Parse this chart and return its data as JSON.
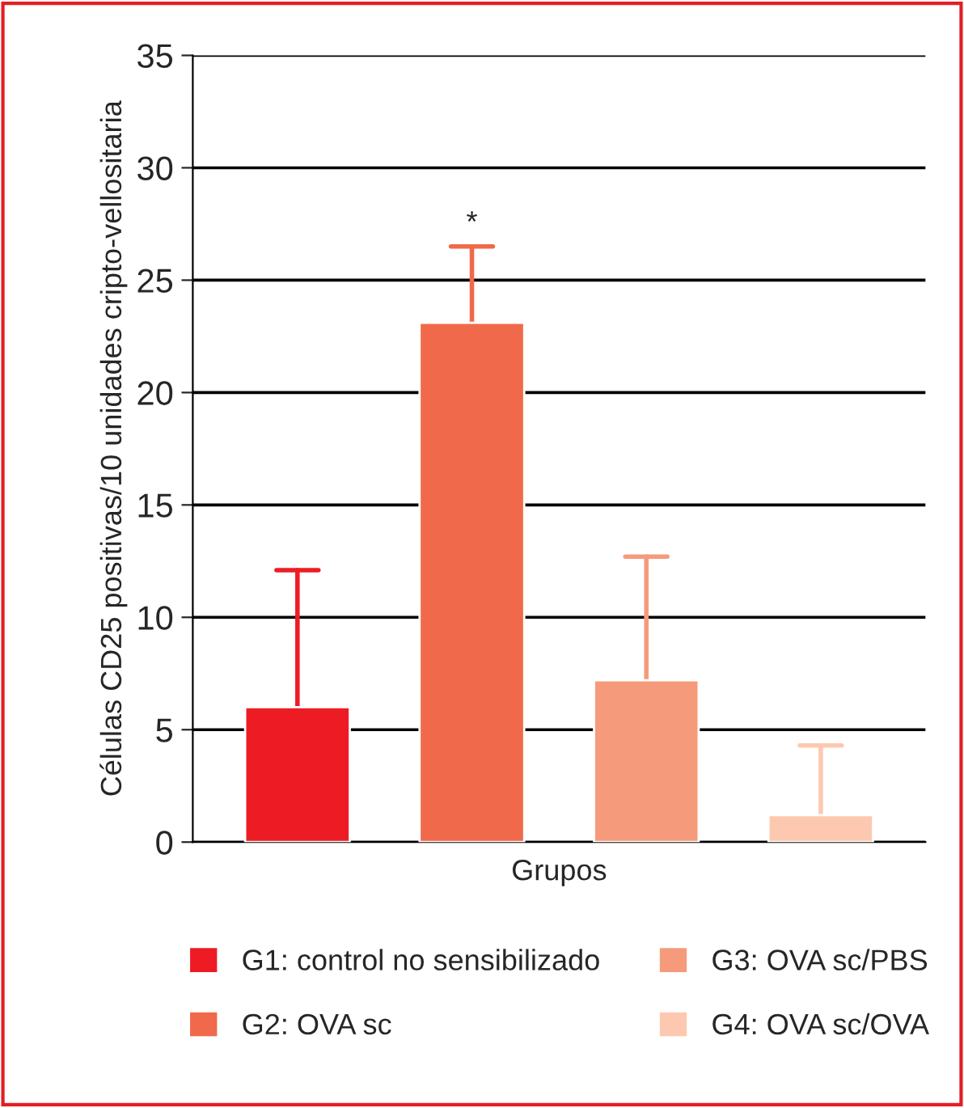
{
  "chart_data": {
    "type": "bar",
    "xlabel": "Grupos",
    "ylabel": "Células CD25 positivas/10 unidades cripto-vellositaria",
    "categories": [
      null,
      null,
      null,
      null
    ],
    "series": [
      {
        "name": "G1: control no sensibilizado",
        "color": "#ed1c24",
        "values": [
          6.0,
          null,
          null,
          null
        ],
        "errors": [
          [
            6.0,
            12.1
          ],
          null,
          null,
          null
        ]
      },
      {
        "name": "G2: OVA sc",
        "color": "#f0694a",
        "values": [
          null,
          23.1,
          null,
          null
        ],
        "errors": [
          null,
          [
            23.1,
            26.5
          ],
          null,
          null
        ]
      },
      {
        "name": "G3: OVA sc/PBS",
        "color": "#f59b7b",
        "values": [
          null,
          null,
          7.2,
          null
        ],
        "errors": [
          null,
          null,
          [
            7.2,
            12.7
          ],
          null
        ]
      },
      {
        "name": "G4: OVA sc/OVA",
        "color": "#fcc9b0",
        "values": [
          null,
          null,
          null,
          1.2
        ],
        "errors": [
          null,
          null,
          null,
          [
            1.2,
            4.3
          ]
        ]
      }
    ],
    "ylim": [
      0,
      35
    ],
    "yticks": [
      0,
      5,
      10,
      15,
      20,
      25,
      30,
      35
    ],
    "grid": "y",
    "legend": "bottom",
    "annotations": [
      {
        "text": "*",
        "y": 26.5
      }
    ]
  }
}
